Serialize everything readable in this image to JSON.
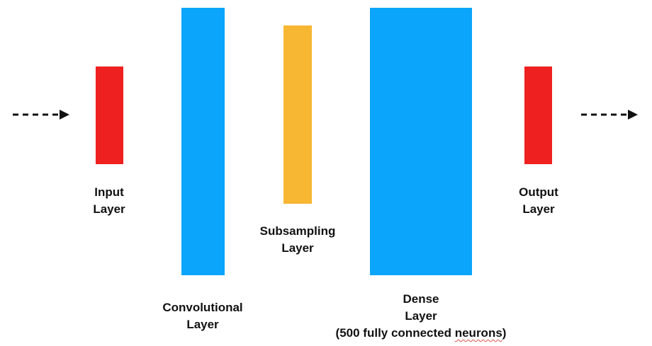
{
  "colors": {
    "input": "#ef2020",
    "convolutional": "#0ba5fb",
    "subsampling": "#f7b733",
    "dense": "#0ba5fb",
    "output": "#ef2020",
    "arrow": "#111111"
  },
  "layers": {
    "input": {
      "line1": "Input",
      "line2": "Layer"
    },
    "convolutional": {
      "line1": "Convolutional",
      "line2": "Layer"
    },
    "subsampling": {
      "line1": "Subsampling",
      "line2": "Layer"
    },
    "dense": {
      "line1": "Dense",
      "line2": "Layer",
      "line3_pre": "(500 fully connected ",
      "line3_flag": "neurons",
      "line3_post": ")"
    },
    "output": {
      "line1": "Output",
      "line2": "Layer"
    }
  }
}
